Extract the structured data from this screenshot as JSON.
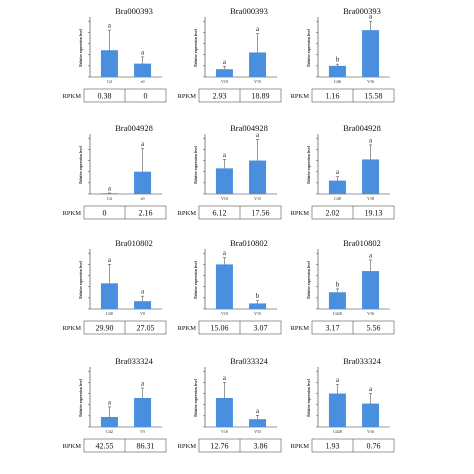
{
  "figure": {
    "ylabel": "Relative expression level",
    "rpkm_label": "RPKM",
    "bar_color": "#4a8fdd",
    "error_color": "#555555"
  },
  "chart_data": [
    {
      "type": "bar",
      "title": "Bra000393",
      "categories": [
        "Ctl",
        "v0"
      ],
      "values": [
        2.4,
        1.2
      ],
      "errors": [
        1.8,
        0.6
      ],
      "ylim": [
        0,
        5.2
      ],
      "significance": [
        "a",
        "a"
      ],
      "rpkm": [
        "0.38",
        "0"
      ]
    },
    {
      "type": "bar",
      "title": "Bra000393",
      "categories": [
        "V10",
        "V15"
      ],
      "values": [
        0.7,
        2.2
      ],
      "errors": [
        0.25,
        1.7
      ],
      "ylim": [
        0,
        5.2
      ],
      "significance": [
        "a",
        "a"
      ],
      "rpkm": [
        "2.93",
        "18.89"
      ]
    },
    {
      "type": "bar",
      "title": "Bra000393",
      "categories": [
        "Ctl6",
        "V16"
      ],
      "values": [
        1.0,
        4.2
      ],
      "errors": [
        0.15,
        0.8
      ],
      "ylim": [
        0,
        5.2
      ],
      "significance": [
        "b",
        "a"
      ],
      "rpkm": [
        "1.16",
        "15.58"
      ]
    },
    {
      "type": "bar",
      "title": "Bra004928",
      "categories": [
        "Ctl",
        "v0"
      ],
      "values": [
        0.06,
        2.0
      ],
      "errors": [
        0.03,
        2.1
      ],
      "ylim": [
        0,
        5.2
      ],
      "significance": [
        "a",
        "a"
      ],
      "rpkm": [
        "0",
        "2.16"
      ]
    },
    {
      "type": "bar",
      "title": "Bra004928",
      "categories": [
        "V10",
        "V15"
      ],
      "values": [
        2.3,
        3.0
      ],
      "errors": [
        0.8,
        1.9
      ],
      "ylim": [
        0,
        5.2
      ],
      "significance": [
        "a",
        "a"
      ],
      "rpkm": [
        "6.12",
        "17.56"
      ]
    },
    {
      "type": "bar",
      "title": "Bra004928",
      "categories": [
        "Ctl8",
        "V18"
      ],
      "values": [
        1.2,
        3.1
      ],
      "errors": [
        0.35,
        1.3
      ],
      "ylim": [
        0,
        5.2
      ],
      "significance": [
        "a",
        "a"
      ],
      "rpkm": [
        "2.02",
        "19.13"
      ]
    },
    {
      "type": "bar",
      "title": "Bra010802",
      "categories": [
        "Ctl0",
        "V0"
      ],
      "values": [
        2.3,
        0.7
      ],
      "errors": [
        1.7,
        0.45
      ],
      "ylim": [
        0,
        5.2
      ],
      "significance": [
        "a",
        "a"
      ],
      "rpkm": [
        "29.90",
        "27.05"
      ]
    },
    {
      "type": "bar",
      "title": "Bra010802",
      "categories": [
        "V10",
        "V15"
      ],
      "values": [
        4.0,
        0.5
      ],
      "errors": [
        0.6,
        0.25
      ],
      "ylim": [
        0,
        5.2
      ],
      "significance": [
        "a",
        "b"
      ],
      "rpkm": [
        "15.06",
        "3.07"
      ]
    },
    {
      "type": "bar",
      "title": "Bra010802",
      "categories": [
        "Ctl20",
        "V16"
      ],
      "values": [
        1.5,
        3.4
      ],
      "errors": [
        0.3,
        1.0
      ],
      "ylim": [
        0,
        5.2
      ],
      "significance": [
        "b",
        "a"
      ],
      "rpkm": [
        "3.17",
        "5.56"
      ]
    },
    {
      "type": "bar",
      "title": "Bra033324",
      "categories": [
        "Ctl2",
        "V5"
      ],
      "values": [
        0.9,
        2.6
      ],
      "errors": [
        0.9,
        0.9
      ],
      "ylim": [
        0,
        5.2
      ],
      "significance": [
        "a",
        "a"
      ],
      "rpkm": [
        "42.55",
        "86.31"
      ]
    },
    {
      "type": "bar",
      "title": "Bra033324",
      "categories": [
        "V16",
        "V53"
      ],
      "values": [
        2.6,
        0.7
      ],
      "errors": [
        1.4,
        0.35
      ],
      "ylim": [
        0,
        5.2
      ],
      "significance": [
        "a",
        "a"
      ],
      "rpkm": [
        "12.76",
        "3.86"
      ]
    },
    {
      "type": "bar",
      "title": "Bra033324",
      "categories": [
        "Ctl28",
        "V16"
      ],
      "values": [
        3.0,
        2.1
      ],
      "errors": [
        0.8,
        0.9
      ],
      "ylim": [
        0,
        5.2
      ],
      "significance": [
        "a",
        "a"
      ],
      "rpkm": [
        "1.93",
        "0.76"
      ]
    }
  ]
}
